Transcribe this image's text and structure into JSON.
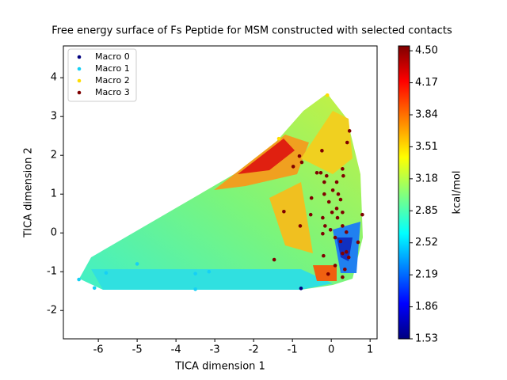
{
  "chart_data": {
    "type": "scatter",
    "title": "Free energy surface of Fs Peptide for MSM constructed with selected contacts",
    "x_label": "TICA dimension 1",
    "y_label": "TICA dimension 2",
    "xlim": [
      -6.9,
      1.18
    ],
    "ylim": [
      -2.73,
      4.82
    ],
    "xticks": [
      -6,
      -5,
      -4,
      -3,
      -2,
      -1,
      0,
      1
    ],
    "yticks": [
      -2,
      -1,
      0,
      1,
      2,
      3,
      4
    ],
    "legend": "upper left",
    "colorbar": {
      "label": "kcal/mol",
      "lim": [
        1.53,
        4.55
      ],
      "ticks": [
        1.53,
        1.86,
        2.19,
        2.52,
        2.85,
        3.18,
        3.51,
        3.84,
        4.17,
        {
          "value": 4.5,
          "label": "4.50"
        }
      ]
    },
    "series": [
      {
        "name": "Macro 0",
        "color": "#00007f",
        "x": [
          -0.78
        ],
        "y": [
          -1.43
        ]
      },
      {
        "name": "Macro 1",
        "color": "#16d0f5",
        "x": [
          -6.5,
          -6.1,
          -5.8,
          -5.0,
          -3.5,
          -3.5,
          -3.15
        ],
        "y": [
          -1.2,
          -1.42,
          -1.03,
          -0.8,
          -1.05,
          -1.45,
          -1.0
        ]
      },
      {
        "name": "Macro 2",
        "color": "#ffdd00",
        "x": [
          -1.35,
          -0.1
        ],
        "y": [
          2.43,
          3.55
        ]
      },
      {
        "name": "Macro 3",
        "color": "#7f0000",
        "x": [
          0.47,
          0.41,
          -0.24,
          -0.82,
          -0.98,
          -0.76,
          -0.37,
          -0.27,
          -0.12,
          0.29,
          0.31,
          0.14,
          0.04,
          -0.18,
          -0.18,
          -0.51,
          0.18,
          0.24,
          -0.06,
          0.14,
          0.29,
          0.02,
          -0.22,
          0.16,
          0.8,
          -1.22,
          -0.53,
          -0.8,
          -0.16,
          -0.02,
          0.29,
          0.39,
          -0.22,
          0.1,
          0.24,
          0.69,
          0.39,
          0.45,
          -0.2,
          0.29,
          -1.47,
          0.29,
          -0.08,
          0.1,
          0.35
        ],
        "y": [
          2.63,
          2.33,
          2.12,
          1.98,
          1.71,
          1.82,
          1.55,
          1.55,
          1.47,
          1.65,
          1.47,
          1.31,
          1.1,
          1.31,
          1.0,
          0.9,
          1.0,
          0.86,
          0.8,
          0.63,
          0.53,
          0.53,
          0.39,
          0.39,
          0.47,
          0.55,
          0.47,
          0.18,
          0.18,
          0.08,
          0.18,
          0.02,
          -0.02,
          -0.12,
          -0.22,
          -0.24,
          -0.49,
          -0.63,
          -0.59,
          -0.53,
          -0.69,
          -1.14,
          -1.06,
          -0.84,
          -0.94
        ]
      }
    ]
  }
}
